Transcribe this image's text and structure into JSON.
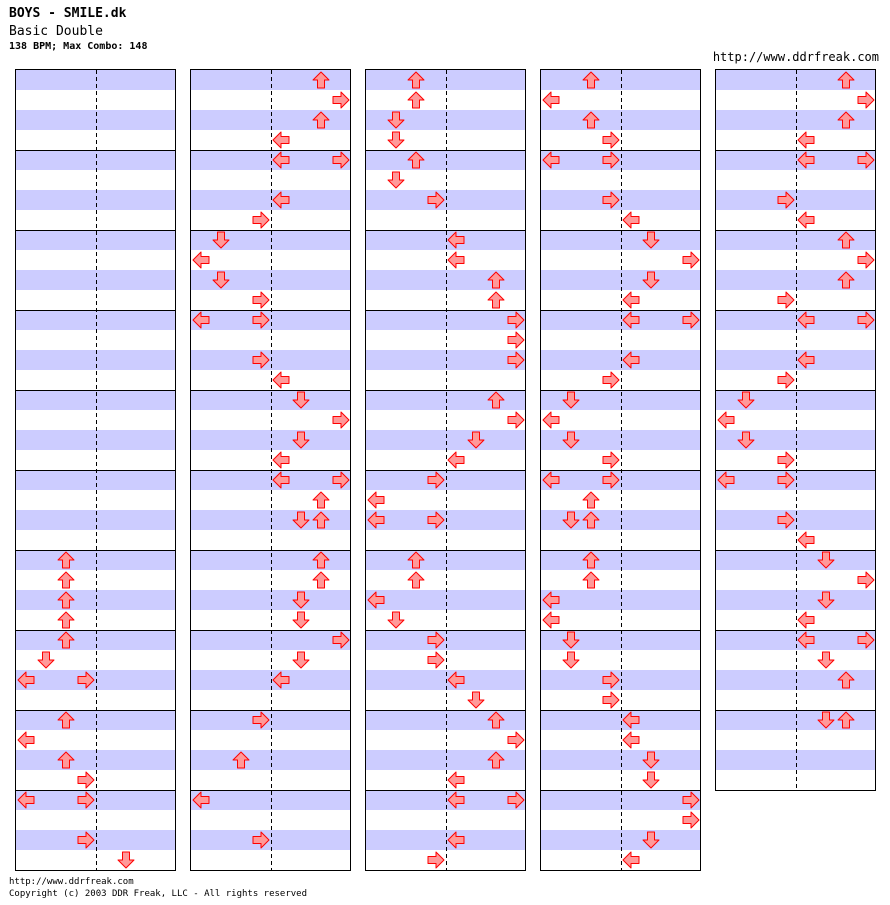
{
  "header": {
    "title": "BOYS - SMILE.dk",
    "difficulty": "Basic Double",
    "info": "138 BPM; Max Combo: 148",
    "site": "http://www.ddrfreak.com"
  },
  "footer": {
    "url": "http://www.ddrfreak.com",
    "copyright": "Copyright (c) 2003 DDR Freak, LLC - All rights reserved"
  },
  "colors": {
    "stripe": "#ccccff",
    "arrow_fill": "#ff9999",
    "arrow_stroke": "#ff0000",
    "border": "#000000"
  },
  "chart_data": {
    "type": "step-chart",
    "lanes": [
      "left",
      "down",
      "up",
      "right",
      "left",
      "down",
      "up",
      "right"
    ],
    "note_resolution": "quarter",
    "measures": [
      [
        [],
        [],
        [],
        []
      ],
      [
        [],
        [],
        [],
        []
      ],
      [
        [],
        [],
        [],
        []
      ],
      [
        [],
        [],
        [],
        []
      ],
      [
        [],
        [],
        [],
        []
      ],
      [
        [],
        [],
        [],
        []
      ],
      [
        [
          "up"
        ],
        [
          "up"
        ],
        [
          "up"
        ],
        [
          "up"
        ]
      ],
      [
        [
          "up"
        ],
        [
          "down"
        ],
        [
          "left",
          "right"
        ],
        []
      ],
      [
        [
          "up"
        ],
        [
          "left"
        ],
        [
          "up"
        ],
        [
          "right"
        ]
      ],
      [
        [
          "left",
          "right"
        ],
        [],
        [
          "right"
        ],
        [
          "down2"
        ]
      ],
      [
        [
          "up2"
        ],
        [
          "right2"
        ],
        [
          "up2"
        ],
        [
          "left2"
        ]
      ],
      [
        [
          "left2",
          "right2"
        ],
        [],
        [
          "left2"
        ],
        [
          "right"
        ]
      ],
      [
        [
          "down"
        ],
        [
          "left"
        ],
        [
          "down"
        ],
        [
          "right"
        ]
      ],
      [
        [
          "left",
          "right"
        ],
        [],
        [
          "right"
        ],
        [
          "left2"
        ]
      ],
      [
        [
          "down2"
        ],
        [
          "right2"
        ],
        [
          "down2"
        ],
        [
          "left2"
        ]
      ],
      [
        [
          "left2",
          "right2"
        ],
        [
          "up2"
        ],
        [
          "down2",
          "up2"
        ],
        []
      ],
      [
        [
          "up2"
        ],
        [
          "up2"
        ],
        [
          "down2"
        ],
        [
          "down2"
        ]
      ],
      [
        [
          "right2"
        ],
        [
          "down2"
        ],
        [
          "left2"
        ],
        []
      ],
      [
        [
          "right"
        ],
        [],
        [
          "up"
        ],
        []
      ],
      [
        [
          "left"
        ],
        [],
        [
          "right"
        ],
        []
      ],
      [
        [
          "up"
        ],
        [
          "up"
        ],
        [
          "down"
        ],
        [
          "down"
        ]
      ],
      [
        [
          "up"
        ],
        [
          "down"
        ],
        [
          "right"
        ],
        []
      ],
      [
        [
          "left2"
        ],
        [
          "left2"
        ],
        [
          "up2"
        ],
        [
          "up2"
        ]
      ],
      [
        [
          "right2"
        ],
        [
          "right2"
        ],
        [
          "right2"
        ],
        []
      ],
      [
        [
          "up2"
        ],
        [
          "right2"
        ],
        [
          "down2"
        ],
        [
          "left2"
        ]
      ],
      [
        [
          "right"
        ],
        [
          "left"
        ],
        [
          "left",
          "right"
        ],
        []
      ],
      [
        [
          "up"
        ],
        [
          "up"
        ],
        [
          "left"
        ],
        [
          "down"
        ]
      ],
      [
        [
          "right"
        ],
        [
          "right"
        ],
        [
          "left2"
        ],
        [
          "down2"
        ]
      ],
      [
        [
          "up2"
        ],
        [
          "right2"
        ],
        [
          "up2"
        ],
        [
          "left2"
        ]
      ],
      [
        [
          "left2",
          "right2"
        ],
        [],
        [
          "left2"
        ],
        [
          "right"
        ]
      ],
      [
        [
          "up"
        ],
        [
          "left"
        ],
        [
          "up"
        ],
        [
          "right"
        ]
      ],
      [
        [
          "left",
          "right"
        ],
        [],
        [
          "right"
        ],
        [
          "left2"
        ]
      ],
      [
        [
          "down2"
        ],
        [
          "right2"
        ],
        [
          "down2"
        ],
        [
          "left2"
        ]
      ],
      [
        [
          "left2",
          "right2"
        ],
        [],
        [
          "left2"
        ],
        [
          "right"
        ]
      ],
      [
        [
          "down"
        ],
        [
          "left"
        ],
        [
          "down"
        ],
        [
          "right"
        ]
      ],
      [
        [
          "left",
          "right"
        ],
        [
          "up"
        ],
        [
          "down",
          "up"
        ],
        []
      ],
      [
        [
          "up"
        ],
        [
          "up"
        ],
        [
          "left"
        ],
        [
          "left"
        ]
      ],
      [
        [
          "down"
        ],
        [
          "down"
        ],
        [
          "right"
        ],
        [
          "right"
        ]
      ],
      [
        [
          "left2"
        ],
        [
          "left2"
        ],
        [
          "down2"
        ],
        [
          "down2"
        ]
      ],
      [
        [
          "right2"
        ],
        [
          "right2"
        ],
        [
          "down2"
        ],
        [
          "left2"
        ]
      ],
      [
        [
          "up2"
        ],
        [
          "right2"
        ],
        [
          "up2"
        ],
        [
          "left2"
        ]
      ],
      [
        [
          "left2",
          "right2"
        ],
        [],
        [
          "right"
        ],
        [
          "left2"
        ]
      ],
      [
        [
          "up2"
        ],
        [
          "right2"
        ],
        [
          "up2"
        ],
        [
          "right"
        ]
      ],
      [
        [
          "left2",
          "right2"
        ],
        [],
        [
          "left2"
        ],
        [
          "right"
        ]
      ],
      [
        [
          "down"
        ],
        [
          "left"
        ],
        [
          "down"
        ],
        [
          "right"
        ]
      ],
      [
        [
          "left",
          "right"
        ],
        [],
        [
          "right"
        ],
        [
          "left2"
        ]
      ],
      [
        [
          "down2"
        ],
        [
          "right2"
        ],
        [
          "down2"
        ],
        [
          "left2"
        ]
      ],
      [
        [
          "left2",
          "right2"
        ],
        [
          "down2"
        ],
        [
          "up2"
        ],
        []
      ],
      [
        [
          "down2",
          "up2"
        ],
        [],
        [],
        []
      ]
    ]
  }
}
